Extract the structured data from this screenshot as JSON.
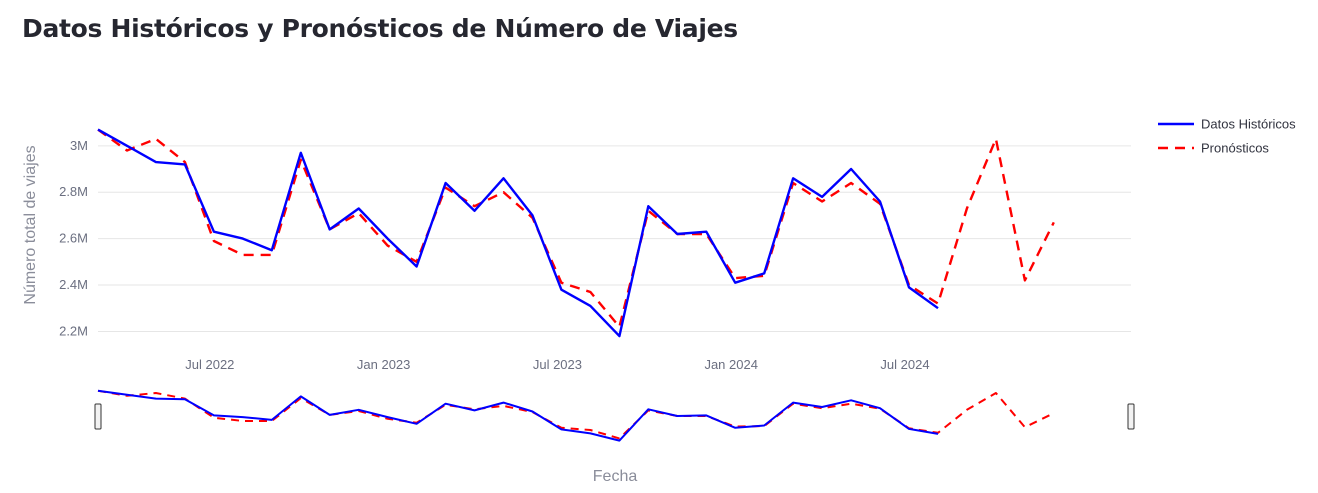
{
  "page": {
    "title": "Datos Históricos y Pronósticos de Número de Viajes"
  },
  "chart_data": {
    "type": "line",
    "x_start": "2022-03-01",
    "x": [
      "Mar 2022",
      "Apr 2022",
      "May 2022",
      "Jun 2022",
      "Jul 2022",
      "Aug 2022",
      "Sep 2022",
      "Oct 2022",
      "Nov 2022",
      "Dec 2022",
      "Jan 2023",
      "Feb 2023",
      "Mar 2023",
      "Apr 2023",
      "May 2023",
      "Jun 2023",
      "Jul 2023",
      "Aug 2023",
      "Sep 2023",
      "Oct 2023",
      "Nov 2023",
      "Dec 2023",
      "Jan 2024",
      "Feb 2024",
      "Mar 2024",
      "Apr 2024",
      "May 2024",
      "Jun 2024",
      "Jul 2024",
      "Aug 2024",
      "Sep 2024",
      "Oct 2024",
      "Nov 2024",
      "Dec 2024",
      "Jan 2025",
      "Feb 2025"
    ],
    "series": [
      {
        "name": "Datos Históricos",
        "color": "#0000ff",
        "dash": "solid",
        "values": [
          3.07,
          3.0,
          2.93,
          2.92,
          2.63,
          2.6,
          2.55,
          2.97,
          2.64,
          2.73,
          2.6,
          2.48,
          2.84,
          2.72,
          2.86,
          2.7,
          2.38,
          2.31,
          2.18,
          2.74,
          2.62,
          2.63,
          2.41,
          2.45,
          2.86,
          2.78,
          2.9,
          2.76,
          2.39,
          2.3,
          null,
          null,
          null,
          null,
          null,
          null
        ]
      },
      {
        "name": "Pronósticos",
        "color": "#ff0000",
        "dash": "dash",
        "values": [
          3.07,
          2.98,
          3.03,
          2.93,
          2.59,
          2.53,
          2.53,
          2.94,
          2.64,
          2.71,
          2.57,
          2.5,
          2.82,
          2.74,
          2.8,
          2.69,
          2.41,
          2.37,
          2.22,
          2.72,
          2.62,
          2.62,
          2.43,
          2.44,
          2.84,
          2.76,
          2.84,
          2.75,
          2.4,
          2.32,
          2.73,
          3.03,
          2.42,
          2.67,
          null,
          null
        ]
      }
    ],
    "x_ticks": [
      "Jul 2022",
      "Jan 2023",
      "Jul 2023",
      "Jan 2024",
      "Jul 2024"
    ],
    "y_ticks": [
      {
        "value": 2.2,
        "label": "2.2M"
      },
      {
        "value": 2.4,
        "label": "2.4M"
      },
      {
        "value": 2.6,
        "label": "2.6M"
      },
      {
        "value": 2.8,
        "label": "2.8M"
      },
      {
        "value": 3.0,
        "label": "3M"
      }
    ],
    "ylim": [
      2.12,
      3.12
    ],
    "xlabel": "Fecha",
    "ylabel": "Número total de viajes",
    "y_unit": "millones de viajes",
    "grid": true,
    "legend_position": "top-right",
    "range_slider": true,
    "colors": {
      "grid": "#e6e6e6",
      "tick_text": "#6b6f80",
      "axis_title": "#8a8d9a"
    }
  }
}
